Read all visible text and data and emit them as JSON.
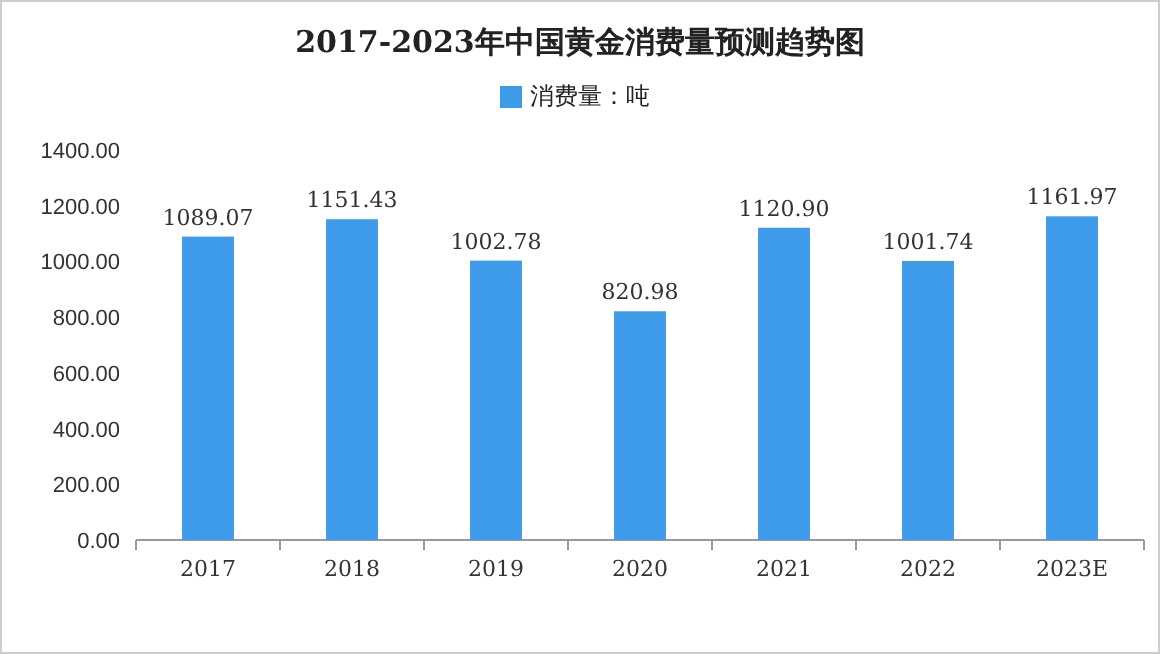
{
  "chart_data": {
    "type": "bar",
    "title": "2017-2023年中国黄金消费量预测趋势图",
    "categories": [
      "2017",
      "2018",
      "2019",
      "2020",
      "2021",
      "2022",
      "2023E"
    ],
    "series": [
      {
        "name": "消费量：吨",
        "color": "#3d9be9",
        "values": [
          1089.07,
          1151.43,
          1002.78,
          820.98,
          1120.9,
          1001.74,
          1161.97
        ],
        "value_labels": [
          "1089.07",
          "1151.43",
          "1002.78",
          "820.98",
          "1120.90",
          "1001.74",
          "1161.97"
        ]
      }
    ],
    "ylim": [
      0,
      1400
    ],
    "yticks": [
      {
        "value": 0,
        "label": "0.00"
      },
      {
        "value": 200,
        "label": "200.00"
      },
      {
        "value": 400,
        "label": "400.00"
      },
      {
        "value": 600,
        "label": "600.00"
      },
      {
        "value": 800,
        "label": "800.00"
      },
      {
        "value": 1000,
        "label": "1000.00"
      },
      {
        "value": 1200,
        "label": "1200.00"
      },
      {
        "value": 1400,
        "label": "1400.00"
      }
    ],
    "legend": "top"
  }
}
